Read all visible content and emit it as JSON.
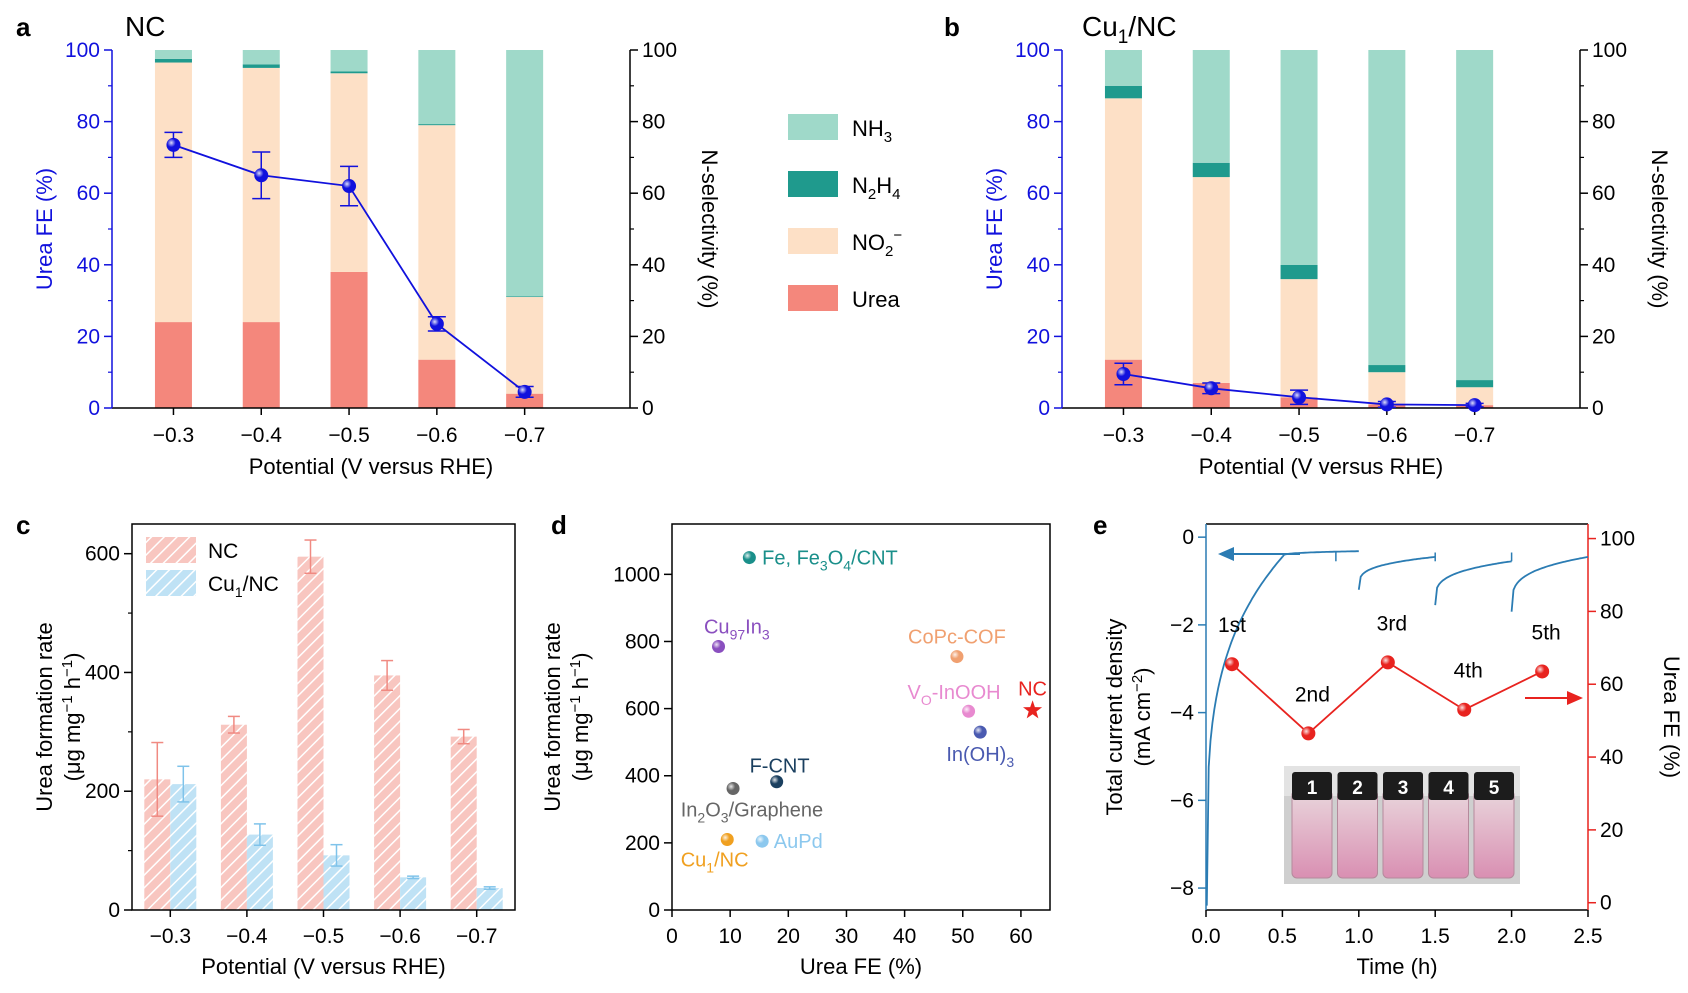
{
  "colors": {
    "urea": "#f4877c",
    "no2": "#fde0c6",
    "n2h4": "#1f9a8d",
    "nh3": "#9fd9c9",
    "line_blue": "#1111dd",
    "nc_red": "#f08a82",
    "cu_blue": "#7fc3ea",
    "current_blue": "#2b7cb3",
    "fe_red": "#e8231f"
  },
  "panels": {
    "a": {
      "letter": "a",
      "title": "NC"
    },
    "b": {
      "letter": "b",
      "title_main": "Cu",
      "title_sub": "1",
      "title_rest": "/NC"
    },
    "c": {
      "letter": "c"
    },
    "d": {
      "letter": "d"
    },
    "e": {
      "letter": "e"
    }
  },
  "legend_ab": [
    {
      "key": "nh3",
      "label": "NH",
      "sub": "3",
      "sup": ""
    },
    {
      "key": "n2h4",
      "label": "N",
      "sub": "2",
      "mid": "H",
      "sub2": "4",
      "sup": ""
    },
    {
      "key": "no2",
      "label": "NO",
      "sub": "2",
      "sup": "−"
    },
    {
      "key": "urea",
      "label": "Urea",
      "sub": "",
      "sup": ""
    }
  ],
  "chart_data": [
    {
      "panel": "a",
      "type": "bar",
      "stacked": true,
      "title": "NC",
      "categories": [
        "−0.3",
        "−0.4",
        "−0.5",
        "−0.6",
        "−0.7"
      ],
      "xlabel": "Potential (V versus RHE)",
      "ylabel_left": "Urea FE (%)",
      "ylabel_right": "N-selectivity (%)",
      "ylim": [
        0,
        100
      ],
      "yticks": [
        0,
        20,
        40,
        60,
        80,
        100
      ],
      "series": [
        {
          "name": "Urea",
          "values": [
            24,
            24,
            38,
            13.5,
            4
          ]
        },
        {
          "name": "NO2−",
          "values": [
            72.5,
            71,
            55.5,
            65.5,
            27
          ]
        },
        {
          "name": "N2H4",
          "values": [
            1,
            1,
            0.5,
            0.3,
            0.2
          ]
        },
        {
          "name": "NH3",
          "values": [
            2.5,
            4,
            6,
            20.7,
            68.8
          ]
        }
      ],
      "line": {
        "name": "Urea FE",
        "values": [
          73.5,
          65,
          62,
          23.5,
          4.5
        ],
        "errors": [
          3.5,
          6.5,
          5.5,
          2,
          1.5
        ]
      }
    },
    {
      "panel": "b",
      "type": "bar",
      "stacked": true,
      "title": "Cu1/NC",
      "categories": [
        "−0.3",
        "−0.4",
        "−0.5",
        "−0.6",
        "−0.7"
      ],
      "xlabel": "Potential (V versus RHE)",
      "ylabel_left": "Urea FE (%)",
      "ylabel_right": "N-selectivity (%)",
      "ylim": [
        0,
        100
      ],
      "yticks": [
        0,
        20,
        40,
        60,
        80,
        100
      ],
      "series": [
        {
          "name": "Urea",
          "values": [
            13.5,
            7,
            3,
            1,
            0.8
          ]
        },
        {
          "name": "NO2−",
          "values": [
            73,
            57.5,
            33,
            9,
            5
          ]
        },
        {
          "name": "N2H4",
          "values": [
            3.5,
            4,
            4,
            2,
            2
          ]
        },
        {
          "name": "NH3",
          "values": [
            10,
            31.5,
            60,
            88,
            92.2
          ]
        }
      ],
      "line": {
        "name": "Urea FE",
        "values": [
          9.5,
          5.5,
          3,
          1,
          0.8
        ],
        "errors": [
          3,
          1.5,
          2,
          0.8,
          0.5
        ]
      }
    },
    {
      "panel": "c",
      "type": "bar",
      "title": "",
      "categories": [
        "−0.3",
        "−0.4",
        "−0.5",
        "−0.6",
        "−0.7"
      ],
      "xlabel": "Potential (V versus RHE)",
      "ylabel_line1": "Urea formation rate",
      "ylabel_line2_pre": "(μg mg",
      "ylabel_line2_sup1": "−1",
      "ylabel_line2_mid": " h",
      "ylabel_line2_sup2": "−1",
      "ylabel_line2_post": ")",
      "ylim": [
        0,
        650
      ],
      "yticks": [
        0,
        200,
        400,
        600
      ],
      "legend": "top-left",
      "series": [
        {
          "name": "NC",
          "values": [
            220,
            312,
            595,
            395,
            292
          ],
          "errors": [
            62,
            14,
            28,
            25,
            12
          ]
        },
        {
          "name": "Cu1/NC",
          "values": [
            212,
            127,
            92,
            55,
            37
          ],
          "errors": [
            30,
            18,
            18,
            2,
            2
          ]
        }
      ]
    },
    {
      "panel": "d",
      "type": "scatter",
      "title": "",
      "xlabel": "Urea FE (%)",
      "ylabel_line1": "Urea formation rate",
      "ylabel_line2_pre": "(μg mg",
      "ylabel_line2_sup1": "−1",
      "ylabel_line2_mid": " h",
      "ylabel_line2_sup2": "−1",
      "ylabel_line2_post": ")",
      "xlim": [
        0,
        65
      ],
      "ylim": [
        0,
        1150
      ],
      "xticks": [
        0,
        10,
        20,
        30,
        40,
        50,
        60
      ],
      "yticks": [
        0,
        200,
        400,
        600,
        800,
        1000
      ],
      "points": [
        {
          "label": "Fe, Fe3O4/CNT",
          "x": 13.3,
          "y": 1050,
          "color": "#1a8f8a",
          "parts": [
            [
              "Fe, Fe",
              ""
            ],
            [
              "3",
              "sub"
            ],
            [
              "O",
              ""
            ],
            [
              "4",
              "sub"
            ],
            [
              "/CNT",
              ""
            ]
          ],
          "lx": 15.5,
          "ly": 1050,
          "anchor": "start"
        },
        {
          "label": "Cu97In3",
          "x": 8,
          "y": 785,
          "color": "#8a4fbf",
          "parts": [
            [
              "Cu",
              ""
            ],
            [
              "97",
              "sub"
            ],
            [
              "In",
              ""
            ],
            [
              "3",
              "sub"
            ]
          ],
          "lx": 5.5,
          "ly": 845,
          "anchor": "start"
        },
        {
          "label": "CoPc-COF",
          "x": 49,
          "y": 755,
          "color": "#f0a070",
          "parts": [
            [
              "CoPc-COF",
              ""
            ]
          ],
          "lx": 49,
          "ly": 815,
          "anchor": "middle"
        },
        {
          "label": "VO-InOOH",
          "x": 51,
          "y": 592,
          "color": "#e88ad0",
          "parts": [
            [
              "V",
              ""
            ],
            [
              "O",
              "sub"
            ],
            [
              "-InOOH",
              ""
            ]
          ],
          "lx": 48.5,
          "ly": 650,
          "anchor": "middle"
        },
        {
          "label": "NC",
          "x": 62,
          "y": 595,
          "color": "#e8231f",
          "star": true,
          "parts": [
            [
              "NC",
              ""
            ]
          ],
          "lx": 62,
          "ly": 660,
          "anchor": "middle"
        },
        {
          "label": "In(OH)3",
          "x": 53,
          "y": 530,
          "color": "#4a5ab0",
          "parts": [
            [
              "In(OH)",
              ""
            ],
            [
              "3",
              "sub"
            ]
          ],
          "lx": 53,
          "ly": 465,
          "anchor": "middle"
        },
        {
          "label": "F-CNT",
          "x": 18,
          "y": 382,
          "color": "#1a3f5f",
          "parts": [
            [
              "F-CNT",
              ""
            ]
          ],
          "lx": 18.5,
          "ly": 430,
          "anchor": "middle"
        },
        {
          "label": "In2O3/Graphene",
          "x": 10.5,
          "y": 362,
          "color": "#666666",
          "parts": [
            [
              "In",
              ""
            ],
            [
              "2",
              "sub"
            ],
            [
              "O",
              ""
            ],
            [
              "3",
              "sub"
            ],
            [
              "/Graphene",
              ""
            ]
          ],
          "lx": 1.5,
          "ly": 300,
          "anchor": "start"
        },
        {
          "label": "AuPd",
          "x": 15.5,
          "y": 205,
          "color": "#8cc8ee",
          "parts": [
            [
              "AuPd",
              ""
            ]
          ],
          "lx": 17.5,
          "ly": 205,
          "anchor": "start"
        },
        {
          "label": "Cu1/NC",
          "x": 9.5,
          "y": 210,
          "color": "#f0a020",
          "parts": [
            [
              "Cu",
              ""
            ],
            [
              "1",
              "sub"
            ],
            [
              "/NC",
              ""
            ]
          ],
          "lx": 1.5,
          "ly": 150,
          "anchor": "start"
        }
      ]
    },
    {
      "panel": "e",
      "type": "line",
      "title": "",
      "xlabel": "Time (h)",
      "ylabel_left_line1": "Total current density",
      "ylabel_left_line2_pre": "(mA cm",
      "ylabel_left_line2_sup": "−2",
      "ylabel_left_line2_post": ")",
      "ylabel_right": "Urea FE (%)",
      "xlim": [
        0,
        2.5
      ],
      "xticks": [
        0,
        0.5,
        1.0,
        1.5,
        2.0,
        2.5
      ],
      "xtick_labels": [
        "0.0",
        "0.5",
        "1.0",
        "1.5",
        "2.0",
        "2.5"
      ],
      "ylim_left": [
        -8.5,
        0.3
      ],
      "yticks_left": [
        0,
        -2,
        -4,
        -6,
        -8
      ],
      "ylim_right": [
        -2,
        104
      ],
      "yticks_right": [
        0,
        20,
        40,
        60,
        80,
        100
      ],
      "fe_series": {
        "name": "Urea FE",
        "x": [
          0.17,
          0.67,
          1.19,
          1.69,
          2.2
        ],
        "y": [
          65.5,
          46.5,
          66,
          53,
          63.5
        ],
        "labels": [
          "1st",
          "2nd",
          "3rd",
          "4th",
          "5th"
        ]
      },
      "inset_vials": [
        "1",
        "2",
        "3",
        "4",
        "5"
      ]
    }
  ]
}
